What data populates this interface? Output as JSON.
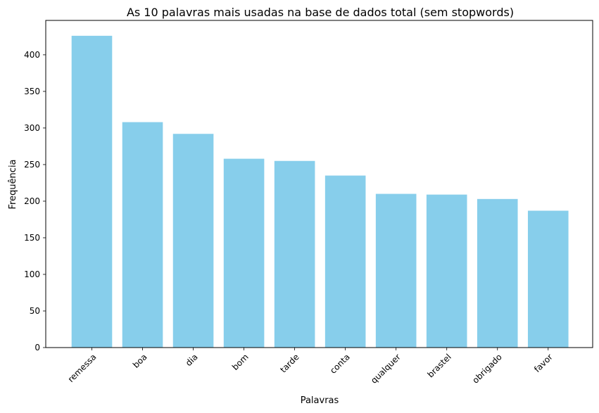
{
  "chart_data": {
    "type": "bar",
    "title": "As 10 palavras mais usadas na base de dados total (sem stopwords)",
    "xlabel": "Palavras",
    "ylabel": "Frequência",
    "categories": [
      "remessa",
      "boa",
      "dia",
      "bom",
      "tarde",
      "conta",
      "qualquer",
      "brastel",
      "obrigado",
      "favor"
    ],
    "values": [
      426,
      308,
      292,
      258,
      255,
      235,
      210,
      209,
      203,
      187
    ],
    "ylim": [
      0,
      447
    ],
    "yticks": [
      0,
      50,
      100,
      150,
      200,
      250,
      300,
      350,
      400
    ],
    "bar_color": "#87CEEB",
    "grid": false,
    "legend": false
  }
}
